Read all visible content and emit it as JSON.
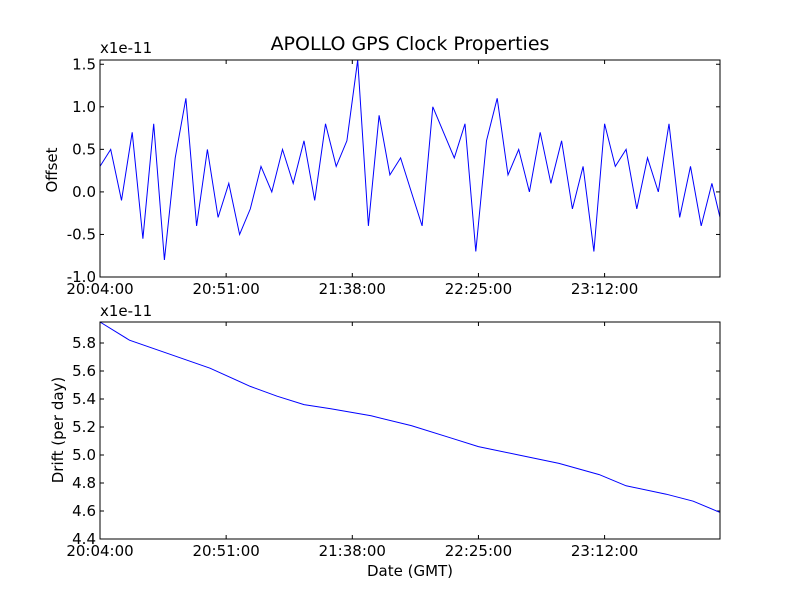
{
  "figure": {
    "title": "APOLLO GPS Clock Properties",
    "background": "#ffffff",
    "line_color": "#0000ff"
  },
  "chart_data": [
    {
      "type": "line",
      "title": "APOLLO GPS Clock Properties",
      "xlabel": "",
      "ylabel": "Offset",
      "y_multiplier": "x1e-11",
      "xlim": [
        "20:04:00",
        "23:55:00"
      ],
      "ylim": [
        -1.0,
        1.55
      ],
      "x_tick_labels": [
        "20:04:00",
        "20:51:00",
        "21:38:00",
        "22:25:00",
        "23:12:00"
      ],
      "y_tick_labels": [
        "-1.0",
        "-0.5",
        "0.0",
        "0.5",
        "1.0",
        "1.5"
      ],
      "y_ticks": [
        -1.0,
        -0.5,
        0.0,
        0.5,
        1.0,
        1.5
      ],
      "grid": false,
      "series": [
        {
          "color": "#0000ff",
          "x": [
            "20:04:00",
            "20:08:00",
            "20:12:00",
            "20:16:00",
            "20:20:00",
            "20:24:00",
            "20:28:00",
            "20:32:00",
            "20:36:00",
            "20:40:00",
            "20:44:00",
            "20:48:00",
            "20:52:00",
            "20:56:00",
            "21:00:00",
            "21:04:00",
            "21:08:00",
            "21:12:00",
            "21:16:00",
            "21:20:00",
            "21:24:00",
            "21:28:00",
            "21:32:00",
            "21:36:00",
            "21:40:00",
            "21:44:00",
            "21:48:00",
            "21:52:00",
            "21:56:00",
            "22:00:00",
            "22:04:00",
            "22:08:00",
            "22:12:00",
            "22:16:00",
            "22:20:00",
            "22:24:00",
            "22:28:00",
            "22:32:00",
            "22:36:00",
            "22:40:00",
            "22:44:00",
            "22:48:00",
            "22:52:00",
            "22:56:00",
            "23:00:00",
            "23:04:00",
            "23:08:00",
            "23:12:00",
            "23:16:00",
            "23:20:00",
            "23:24:00",
            "23:28:00",
            "23:32:00",
            "23:36:00",
            "23:40:00",
            "23:44:00",
            "23:48:00",
            "23:52:00",
            "23:55:00"
          ],
          "values": [
            0.3,
            0.5,
            -0.1,
            0.7,
            -0.55,
            0.8,
            -0.8,
            0.4,
            1.1,
            -0.4,
            0.5,
            -0.3,
            0.1,
            -0.5,
            -0.2,
            0.3,
            0.0,
            0.5,
            0.1,
            0.6,
            -0.1,
            0.8,
            0.3,
            0.6,
            1.55,
            -0.4,
            0.9,
            0.2,
            0.4,
            0.0,
            -0.4,
            1.0,
            0.7,
            0.4,
            0.8,
            -0.7,
            0.6,
            1.1,
            0.2,
            0.5,
            0.0,
            0.7,
            0.1,
            0.6,
            -0.2,
            0.3,
            -0.7,
            0.8,
            0.3,
            0.5,
            -0.2,
            0.4,
            0.0,
            0.8,
            -0.3,
            0.3,
            -0.4,
            0.1,
            -0.3
          ]
        }
      ]
    },
    {
      "type": "line",
      "title": "",
      "xlabel": "Date (GMT)",
      "ylabel": "Drift (per day)",
      "y_multiplier": "x1e-11",
      "xlim": [
        "20:04:00",
        "23:55:00"
      ],
      "ylim": [
        4.4,
        5.95
      ],
      "x_tick_labels": [
        "20:04:00",
        "20:51:00",
        "21:38:00",
        "22:25:00",
        "23:12:00"
      ],
      "y_tick_labels": [
        "4.4",
        "4.6",
        "4.8",
        "5.0",
        "5.2",
        "5.4",
        "5.6",
        "5.8"
      ],
      "y_ticks": [
        4.4,
        4.6,
        4.8,
        5.0,
        5.2,
        5.4,
        5.6,
        5.8
      ],
      "grid": false,
      "series": [
        {
          "color": "#0000ff",
          "x": [
            "20:04:00",
            "20:15:00",
            "20:30:00",
            "20:45:00",
            "21:00:00",
            "21:10:00",
            "21:20:00",
            "21:30:00",
            "21:45:00",
            "22:00:00",
            "22:15:00",
            "22:25:00",
            "22:40:00",
            "22:55:00",
            "23:10:00",
            "23:20:00",
            "23:35:00",
            "23:45:00",
            "23:55:00"
          ],
          "values": [
            5.95,
            5.82,
            5.72,
            5.62,
            5.49,
            5.42,
            5.36,
            5.33,
            5.28,
            5.21,
            5.12,
            5.06,
            5.0,
            4.94,
            4.86,
            4.78,
            4.72,
            4.67,
            4.59
          ]
        }
      ]
    }
  ]
}
